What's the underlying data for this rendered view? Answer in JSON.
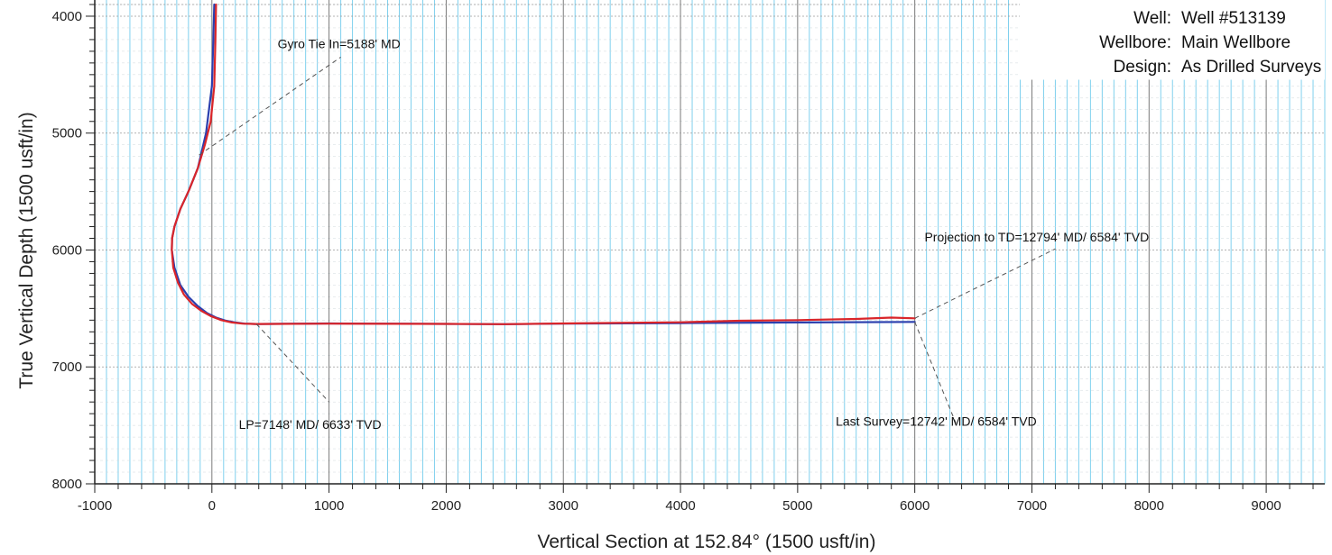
{
  "header": {
    "well_label": "Well:",
    "well_value": "Well #513139",
    "wellbore_label": "Wellbore:",
    "wellbore_value": "Main Wellbore",
    "design_label": "Design:",
    "design_value": "As Drilled Surveys"
  },
  "chart_data": {
    "type": "line",
    "xlabel": "Vertical Section at 152.84° (1500 usft/in)",
    "ylabel": "True Vertical Depth (1500 usft/in)",
    "xlim": [
      -1000,
      9500
    ],
    "ylim": [
      8000,
      3900
    ],
    "y_inverted": true,
    "grid": true,
    "x_ticks": [
      -1000,
      0,
      1000,
      2000,
      3000,
      4000,
      5000,
      6000,
      7000,
      8000,
      9000
    ],
    "y_ticks": [
      4000,
      5000,
      6000,
      7000,
      8000
    ],
    "colors": {
      "plan": "#2b3fae",
      "actual": "#d9252a",
      "major_grid": "#7a7a7a",
      "minor_grid": "#7fd0ee"
    },
    "series": [
      {
        "color": "#2b3fae",
        "x": [
          20,
          12,
          0,
          -50,
          -120,
          -200,
          -270,
          -320,
          -340,
          -342,
          -320,
          -270,
          -200,
          -120,
          -40,
          40,
          120,
          200,
          280,
          380,
          1000,
          2000,
          2500,
          3000,
          4000,
          5000,
          6000
        ],
        "y": [
          3900,
          4200,
          4600,
          5000,
          5300,
          5500,
          5650,
          5800,
          5900,
          6000,
          6150,
          6300,
          6400,
          6480,
          6540,
          6580,
          6605,
          6620,
          6630,
          6633,
          6628,
          6632,
          6634,
          6630,
          6625,
          6620,
          6615
        ]
      },
      {
        "color": "#d9252a",
        "x": [
          35,
          30,
          20,
          -10,
          -60,
          -120,
          -200,
          -270,
          -320,
          -340,
          -342,
          -330,
          -290,
          -240,
          -170,
          -90,
          -10,
          80,
          170,
          260,
          380,
          1000,
          2000,
          2500,
          3000,
          4000,
          4500,
          5000,
          5500,
          5800,
          6000
        ],
        "y": [
          3900,
          4200,
          4600,
          4900,
          5100,
          5300,
          5500,
          5650,
          5800,
          5900,
          6000,
          6150,
          6280,
          6380,
          6460,
          6520,
          6565,
          6600,
          6620,
          6630,
          6633,
          6630,
          6632,
          6634,
          6628,
          6618,
          6605,
          6600,
          6590,
          6578,
          6584
        ]
      }
    ],
    "annotations": [
      {
        "text": "Gyro Tie In=5188' MD",
        "point": [
          -110,
          5188
        ],
        "label_pos": [
          1100,
          4350
        ]
      },
      {
        "text": "LP=7148' MD/ 6633' TVD",
        "point": [
          380,
          6633
        ],
        "label_pos": [
          1000,
          7300
        ]
      },
      {
        "text": "Projection to TD=12794' MD/ 6584' TVD",
        "point": [
          6000,
          6584
        ],
        "label_pos": [
          7200,
          5990
        ]
      },
      {
        "text": "Last Survey=12742' MD/ 6584' TVD",
        "point": [
          6000,
          6615
        ],
        "label_pos": [
          6350,
          7480
        ]
      }
    ]
  }
}
